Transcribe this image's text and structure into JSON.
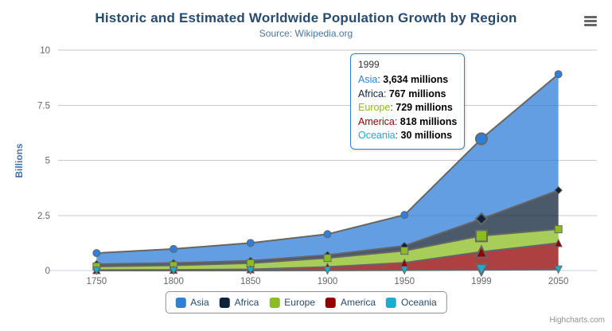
{
  "header": {
    "title": "Historic and Estimated Worldwide Population Growth by Region",
    "subtitle": "Source: Wikipedia.org"
  },
  "menu_icon": "hamburger-icon",
  "chart_data": {
    "type": "area",
    "stacking": "normal",
    "title": "Historic and Estimated Worldwide Population Growth by Region",
    "subtitle": "Source: Wikipedia.org",
    "categories": [
      "1750",
      "1800",
      "1850",
      "1900",
      "1950",
      "1999",
      "2050"
    ],
    "xlabel": "",
    "ylabel": "Billions",
    "yticks": [
      "0",
      "2.5",
      "5",
      "7.5",
      "10"
    ],
    "ytick_values": [
      0,
      2.5,
      5,
      7.5,
      10
    ],
    "ylim": [
      0,
      10
    ],
    "values_unit": "millions",
    "grid": true,
    "legend_position": "bottom",
    "hover_index": 5,
    "series": [
      {
        "name": "Asia",
        "color": "#2f7ed8",
        "marker": "circle",
        "values": [
          502,
          635,
          809,
          947,
          1402,
          3634,
          5268
        ]
      },
      {
        "name": "Africa",
        "color": "#0d233a",
        "marker": "diamond",
        "values": [
          106,
          107,
          111,
          133,
          221,
          767,
          1766
        ]
      },
      {
        "name": "Europe",
        "color": "#8bbc21",
        "marker": "square",
        "values": [
          163,
          203,
          276,
          408,
          547,
          729,
          628
        ]
      },
      {
        "name": "America",
        "color": "#910000",
        "marker": "triangle",
        "values": [
          18,
          31,
          54,
          156,
          339,
          818,
          1201
        ]
      },
      {
        "name": "Oceania",
        "color": "#1aadce",
        "marker": "triangle-down",
        "values": [
          2,
          2,
          2,
          6,
          13,
          30,
          46
        ]
      }
    ]
  },
  "tooltip": {
    "header": "1999",
    "rows": [
      {
        "name": "Asia",
        "value": "3,634 millions"
      },
      {
        "name": "Africa",
        "value": "767 millions"
      },
      {
        "name": "Europe",
        "value": "729 millions"
      },
      {
        "name": "America",
        "value": "818 millions"
      },
      {
        "name": "Oceania",
        "value": "30 millions"
      }
    ]
  },
  "credits": {
    "label": "Highcharts.com"
  },
  "colors": {
    "title": "#274b6d",
    "subtitle": "#4d759e",
    "axis_label": "#666666",
    "axis_title": "#4572a7",
    "gridline": "#c8c8c8",
    "x_axis_line": "#c0d0e0",
    "series_line": "#666666",
    "legend_border": "#909090",
    "legend_text": "#274b6d",
    "tooltip_border": "#2f7ed8",
    "credits_text": "#909090"
  }
}
